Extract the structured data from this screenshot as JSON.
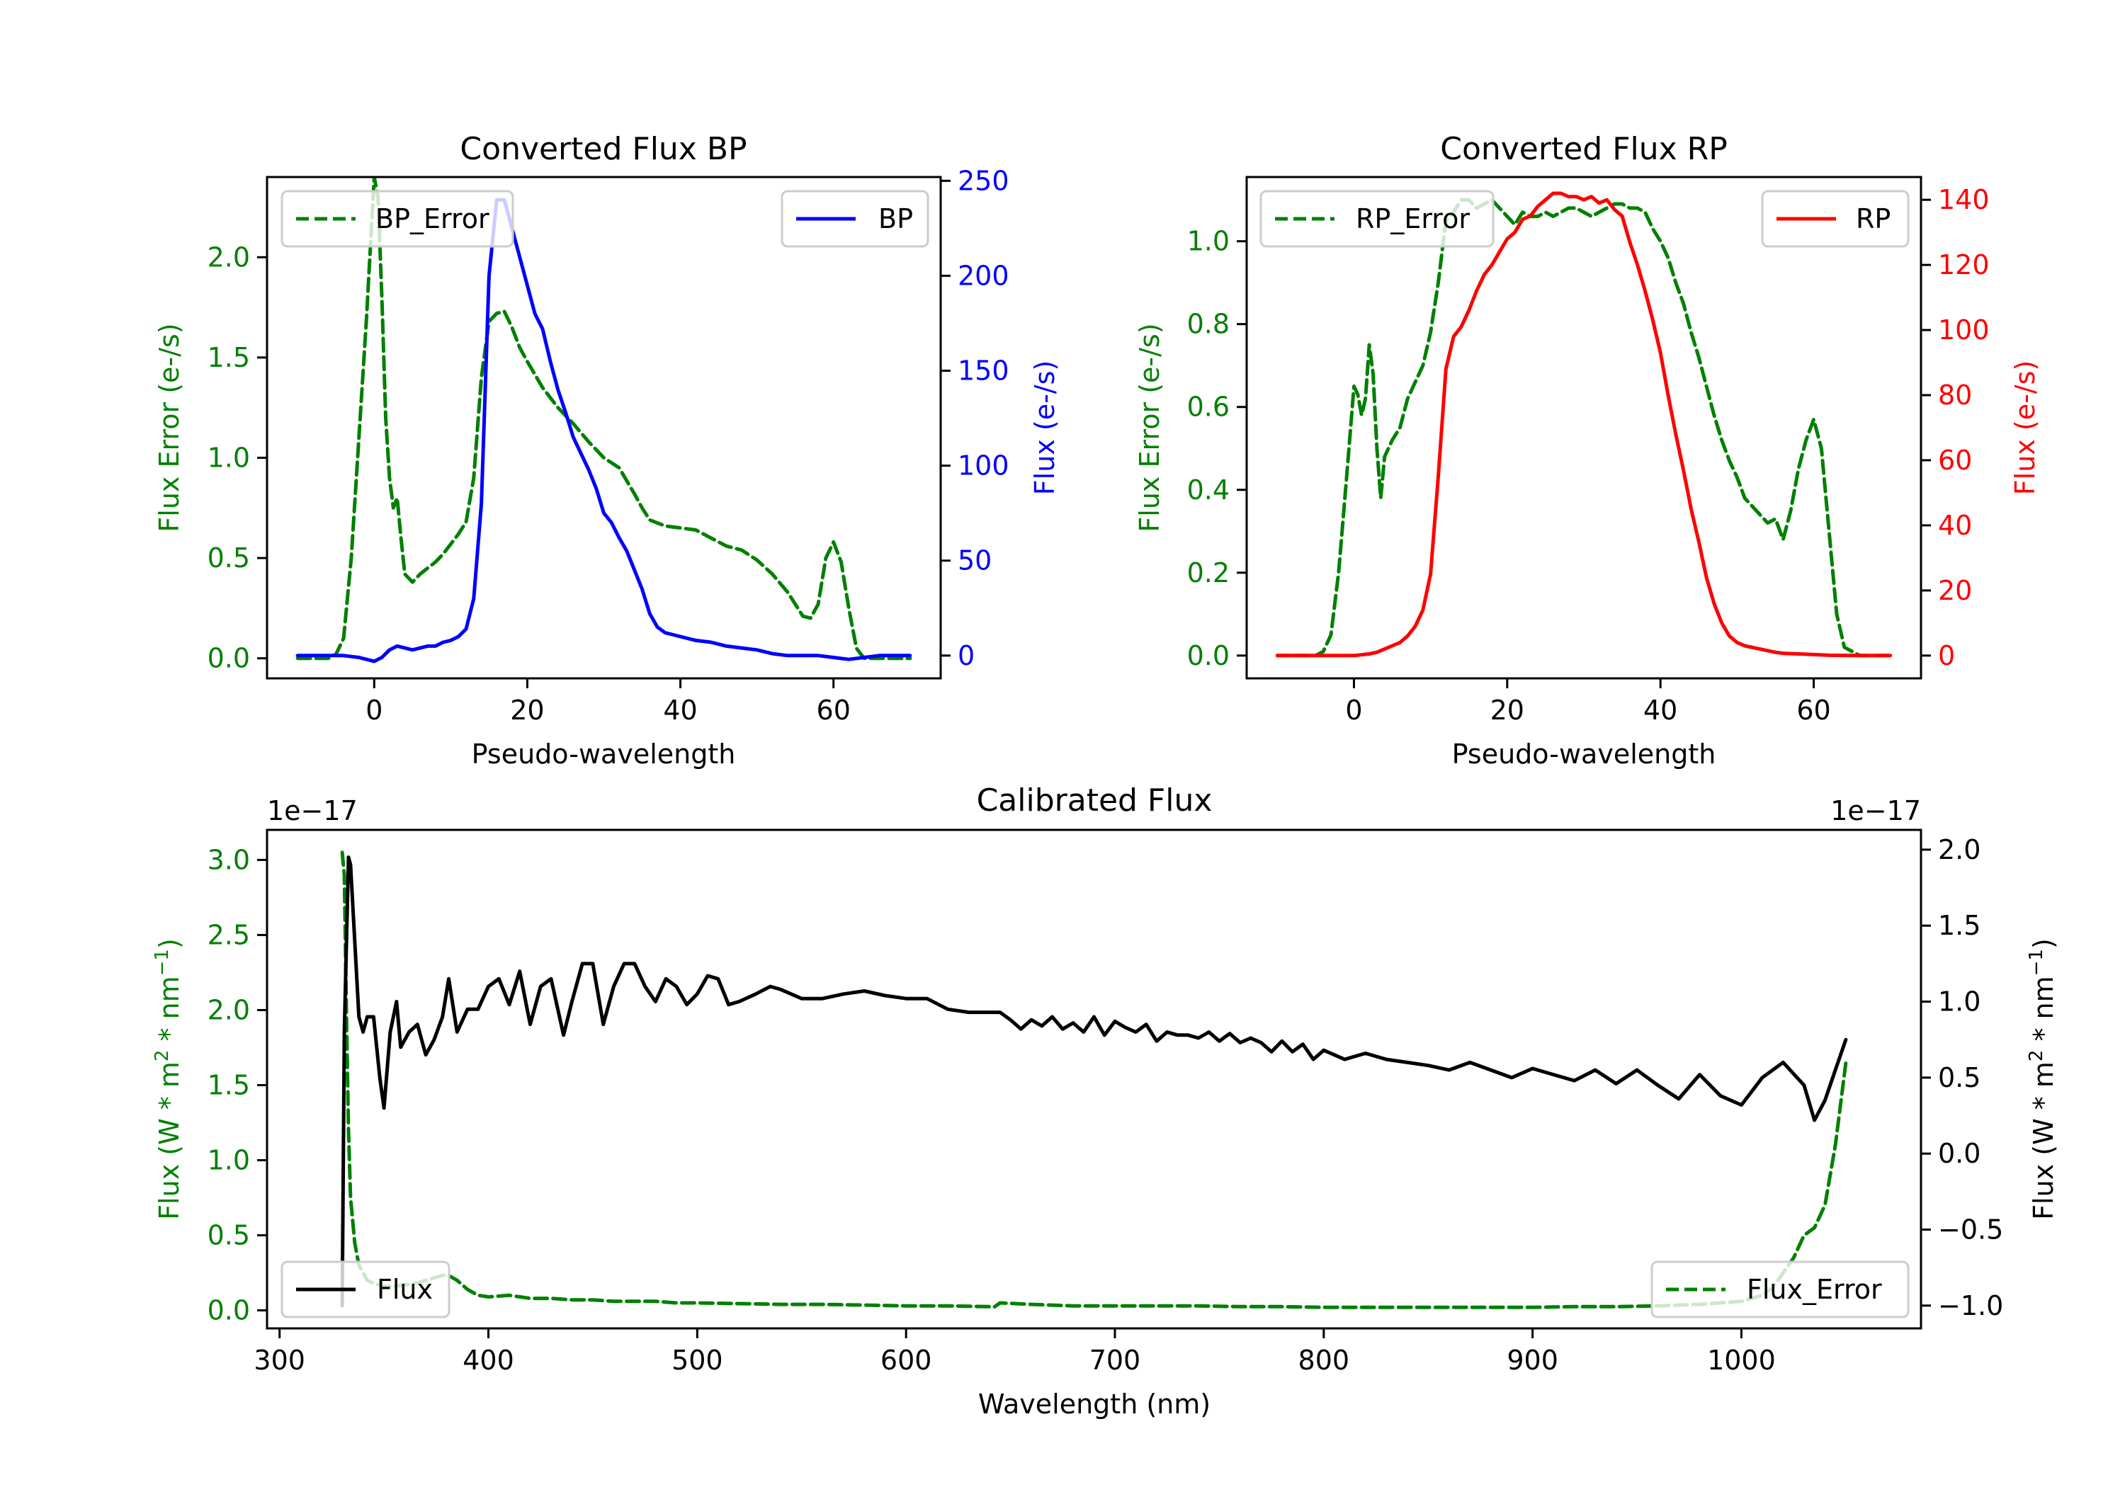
{
  "colors": {
    "error": "#008000",
    "bp": "#0000ff",
    "rp": "#ff0000",
    "flux": "#000000",
    "text": "#000000"
  },
  "chart_data": [
    {
      "id": "bp",
      "type": "line",
      "title": "Converted Flux BP",
      "xlabel": "Pseudo-wavelength",
      "ylabel_left": "Flux Error (e-/s)",
      "ylabel_right": "Flux (e-/s)",
      "xlim": [
        -14,
        74
      ],
      "xticks": [
        0,
        20,
        40,
        60
      ],
      "ylim_left": [
        -0.1,
        2.4
      ],
      "yticks_left": [
        0.0,
        0.5,
        1.0,
        1.5,
        2.0
      ],
      "ytick_labels_left": [
        "0.0",
        "0.5",
        "1.0",
        "1.5",
        "2.0"
      ],
      "ylim_right": [
        -12,
        252
      ],
      "yticks_right": [
        0,
        50,
        100,
        150,
        200,
        250
      ],
      "grid": false,
      "legend_left": {
        "placement": "upper-left",
        "label": "BP_Error"
      },
      "legend_right": {
        "placement": "upper-right",
        "label": "BP"
      },
      "series": [
        {
          "name": "BP_Error",
          "axis": "left",
          "style": "dashed",
          "color": "#008000",
          "x": [
            -10,
            -6,
            -5,
            -4,
            -3,
            -2,
            -1,
            0,
            0.5,
            1,
            1.5,
            2,
            2.5,
            3,
            3.5,
            4,
            5,
            6,
            7,
            8,
            9,
            10,
            11,
            12,
            13,
            14,
            15,
            16,
            17,
            18,
            19,
            20,
            22,
            24,
            26,
            28,
            30,
            32,
            34,
            35,
            36,
            38,
            40,
            42,
            44,
            46,
            48,
            50,
            52,
            54,
            56,
            57,
            58,
            59,
            60,
            61,
            62,
            63,
            64,
            66,
            70
          ],
          "y": [
            0.0,
            0.0,
            0.02,
            0.1,
            0.5,
            1.1,
            1.7,
            2.4,
            2.3,
            1.8,
            1.2,
            0.9,
            0.75,
            0.8,
            0.6,
            0.42,
            0.38,
            0.42,
            0.45,
            0.48,
            0.52,
            0.57,
            0.62,
            0.68,
            0.9,
            1.4,
            1.68,
            1.72,
            1.73,
            1.65,
            1.55,
            1.48,
            1.35,
            1.25,
            1.17,
            1.08,
            1.0,
            0.95,
            0.82,
            0.75,
            0.69,
            0.66,
            0.65,
            0.64,
            0.6,
            0.56,
            0.54,
            0.49,
            0.42,
            0.33,
            0.21,
            0.2,
            0.27,
            0.5,
            0.58,
            0.48,
            0.25,
            0.05,
            0.0,
            0.0,
            0.0
          ]
        },
        {
          "name": "BP",
          "axis": "right",
          "style": "solid",
          "color": "#0000ff",
          "x": [
            -10,
            -6,
            -4,
            -2,
            0,
            1,
            2,
            3,
            4,
            5,
            6,
            7,
            8,
            9,
            10,
            11,
            12,
            13,
            14,
            15,
            16,
            17,
            18,
            19,
            20,
            21,
            22,
            23,
            24,
            25,
            26,
            28,
            29,
            30,
            31,
            32,
            33,
            34,
            35,
            36,
            37,
            38,
            40,
            42,
            44,
            46,
            48,
            50,
            52,
            54,
            56,
            58,
            60,
            62,
            64,
            66,
            70
          ],
          "y": [
            0,
            0,
            0,
            -1,
            -3,
            -1,
            3,
            5,
            4,
            3,
            4,
            5,
            5,
            7,
            8,
            10,
            14,
            30,
            80,
            200,
            240,
            240,
            225,
            210,
            195,
            180,
            172,
            155,
            140,
            128,
            115,
            98,
            88,
            75,
            70,
            62,
            55,
            45,
            35,
            22,
            15,
            12,
            10,
            8,
            7,
            5,
            4,
            3,
            1,
            0,
            0,
            0,
            -1,
            -2,
            -1,
            0,
            0
          ]
        }
      ]
    },
    {
      "id": "rp",
      "type": "line",
      "title": "Converted Flux RP",
      "xlabel": "Pseudo-wavelength",
      "ylabel_left": "Flux Error (e-/s)",
      "ylabel_right": "Flux (e-/s)",
      "xlim": [
        -14,
        74
      ],
      "xticks": [
        0,
        20,
        40,
        60
      ],
      "ylim_left": [
        -0.055,
        1.155
      ],
      "yticks_left": [
        0.0,
        0.2,
        0.4,
        0.6,
        0.8,
        1.0
      ],
      "ytick_labels_left": [
        "0.0",
        "0.2",
        "0.4",
        "0.6",
        "0.8",
        "1.0"
      ],
      "ylim_right": [
        -7,
        147
      ],
      "yticks_right": [
        0,
        20,
        40,
        60,
        80,
        100,
        120,
        140
      ],
      "grid": false,
      "legend_left": {
        "placement": "upper-left",
        "label": "RP_Error"
      },
      "legend_right": {
        "placement": "upper-right",
        "label": "RP"
      },
      "series": [
        {
          "name": "RP_Error",
          "axis": "left",
          "style": "dashed",
          "color": "#008000",
          "x": [
            -10,
            -5,
            -4,
            -3,
            -2,
            -1,
            0,
            0.5,
            1,
            1.5,
            2,
            2.5,
            3,
            3.5,
            4,
            5,
            6,
            7,
            8,
            9,
            10,
            11,
            12,
            13,
            14,
            15,
            16,
            17,
            18,
            19,
            20,
            21,
            22,
            23,
            24,
            25,
            26,
            27,
            28,
            29,
            30,
            31,
            32,
            33,
            34,
            35,
            36,
            37,
            38,
            39,
            40,
            41,
            42,
            43,
            44,
            45,
            46,
            47,
            48,
            49,
            50,
            51,
            52,
            53,
            54,
            55,
            56,
            57,
            58,
            59,
            60,
            61,
            62,
            63,
            64,
            66,
            70
          ],
          "y": [
            0.0,
            0.0,
            0.01,
            0.05,
            0.2,
            0.42,
            0.65,
            0.63,
            0.58,
            0.62,
            0.75,
            0.68,
            0.5,
            0.38,
            0.48,
            0.52,
            0.55,
            0.62,
            0.66,
            0.7,
            0.78,
            0.9,
            1.05,
            1.07,
            1.1,
            1.1,
            1.08,
            1.09,
            1.1,
            1.08,
            1.06,
            1.04,
            1.07,
            1.06,
            1.06,
            1.07,
            1.06,
            1.07,
            1.08,
            1.08,
            1.07,
            1.06,
            1.07,
            1.08,
            1.09,
            1.09,
            1.08,
            1.08,
            1.07,
            1.03,
            1.0,
            0.96,
            0.9,
            0.85,
            0.78,
            0.72,
            0.65,
            0.58,
            0.52,
            0.47,
            0.43,
            0.38,
            0.36,
            0.34,
            0.32,
            0.33,
            0.28,
            0.35,
            0.45,
            0.52,
            0.57,
            0.5,
            0.3,
            0.1,
            0.02,
            0.0,
            0.0
          ]
        },
        {
          "name": "RP",
          "axis": "right",
          "style": "solid",
          "color": "#ff0000",
          "x": [
            -10,
            -5,
            0,
            2,
            3,
            4,
            5,
            6,
            7,
            8,
            9,
            10,
            11,
            12,
            13,
            14,
            15,
            16,
            17,
            18,
            19,
            20,
            21,
            22,
            23,
            24,
            25,
            26,
            27,
            28,
            29,
            30,
            31,
            32,
            33,
            34,
            35,
            36,
            37,
            38,
            39,
            40,
            41,
            42,
            43,
            44,
            45,
            46,
            47,
            48,
            49,
            50,
            51,
            52,
            53,
            54,
            55,
            56,
            58,
            60,
            62,
            66,
            70
          ],
          "y": [
            0,
            0,
            0,
            0.5,
            1,
            2,
            3,
            4,
            6,
            9,
            14,
            25,
            55,
            88,
            98,
            101,
            106,
            112,
            117,
            120,
            124,
            128,
            130,
            134,
            135,
            138,
            140,
            142,
            142,
            141,
            141,
            140,
            141,
            139,
            140,
            137,
            135,
            127,
            120,
            112,
            103,
            93,
            80,
            68,
            57,
            45,
            35,
            24,
            16,
            10,
            6,
            4,
            3,
            2.5,
            2,
            1.5,
            1,
            0.7,
            0.5,
            0.3,
            0.1,
            0,
            0
          ]
        }
      ]
    },
    {
      "id": "calibrated",
      "type": "line",
      "title": "Calibrated Flux",
      "xlabel": "Wavelength (nm)",
      "ylabel_left": "Flux (W * m^2 * nm^-1)",
      "ylabel_right": "Flux (W * m^2 * nm^-1)",
      "offset_left": "1e−17",
      "offset_right": "1e−17",
      "xlim": [
        294,
        1086
      ],
      "xticks": [
        300,
        400,
        500,
        600,
        700,
        800,
        900,
        1000
      ],
      "ylim_left": [
        -0.12,
        3.2
      ],
      "yticks_left": [
        0.0,
        0.5,
        1.0,
        1.5,
        2.0,
        2.5,
        3.0
      ],
      "ytick_labels_left": [
        "0.0",
        "0.5",
        "1.0",
        "1.5",
        "2.0",
        "2.5",
        "3.0"
      ],
      "ylim_right": [
        -1.15,
        2.13
      ],
      "yticks_right": [
        -1.0,
        -0.5,
        0.0,
        0.5,
        1.0,
        1.5,
        2.0
      ],
      "ytick_labels_right": [
        "−1.0",
        "−0.5",
        "0.0",
        "0.5",
        "1.0",
        "1.5",
        "2.0"
      ],
      "grid": false,
      "legend_left": {
        "placement": "lower-left",
        "label": "Flux"
      },
      "legend_right": {
        "placement": "lower-right",
        "label": "Flux_Error"
      },
      "series": [
        {
          "name": "Flux",
          "axis": "right",
          "style": "solid",
          "color": "#000000",
          "scale": "1e-17",
          "x": [
            330,
            331,
            333,
            334,
            336,
            338,
            340,
            342,
            345,
            348,
            350,
            353,
            356,
            358,
            362,
            366,
            370,
            374,
            378,
            381,
            385,
            390,
            395,
            400,
            405,
            410,
            415,
            420,
            425,
            430,
            436,
            440,
            445,
            450,
            455,
            460,
            465,
            470,
            475,
            480,
            485,
            490,
            495,
            500,
            505,
            510,
            515,
            520,
            528,
            535,
            540,
            550,
            560,
            570,
            580,
            590,
            600,
            610,
            620,
            630,
            640,
            645,
            650,
            655,
            660,
            665,
            670,
            675,
            680,
            685,
            690,
            695,
            700,
            705,
            710,
            715,
            720,
            725,
            730,
            735,
            740,
            745,
            750,
            755,
            760,
            765,
            770,
            775,
            780,
            785,
            790,
            795,
            800,
            810,
            820,
            830,
            840,
            850,
            860,
            870,
            880,
            890,
            900,
            910,
            920,
            930,
            940,
            950,
            960,
            970,
            980,
            990,
            1000,
            1010,
            1020,
            1030,
            1035,
            1040,
            1045,
            1050
          ],
          "y": [
            -1.0,
            0.8,
            1.95,
            1.9,
            1.4,
            0.9,
            0.8,
            0.9,
            0.9,
            0.5,
            0.3,
            0.8,
            1.0,
            0.7,
            0.8,
            0.85,
            0.65,
            0.75,
            0.9,
            1.15,
            0.8,
            0.95,
            0.95,
            1.1,
            1.15,
            0.98,
            1.2,
            0.85,
            1.1,
            1.15,
            0.78,
            1.0,
            1.25,
            1.25,
            0.85,
            1.1,
            1.25,
            1.25,
            1.1,
            1.0,
            1.15,
            1.1,
            0.98,
            1.05,
            1.17,
            1.15,
            0.98,
            1.0,
            1.05,
            1.1,
            1.08,
            1.02,
            1.02,
            1.05,
            1.07,
            1.04,
            1.02,
            1.02,
            0.95,
            0.93,
            0.93,
            0.93,
            0.88,
            0.82,
            0.88,
            0.84,
            0.9,
            0.82,
            0.86,
            0.8,
            0.9,
            0.78,
            0.87,
            0.83,
            0.8,
            0.85,
            0.74,
            0.8,
            0.78,
            0.78,
            0.76,
            0.8,
            0.74,
            0.79,
            0.73,
            0.76,
            0.73,
            0.67,
            0.74,
            0.67,
            0.72,
            0.62,
            0.68,
            0.62,
            0.66,
            0.62,
            0.6,
            0.58,
            0.55,
            0.6,
            0.55,
            0.5,
            0.56,
            0.52,
            0.48,
            0.55,
            0.46,
            0.55,
            0.45,
            0.36,
            0.52,
            0.38,
            0.32,
            0.5,
            0.6,
            0.45,
            0.22,
            0.35,
            0.55,
            0.75
          ],
          "note": "plotted on right axis (×1e-17)"
        },
        {
          "name": "Flux_Error",
          "axis": "left",
          "style": "dashed",
          "color": "#008000",
          "scale": "1e-17",
          "x": [
            330,
            331,
            332,
            333,
            334,
            336,
            338,
            340,
            342,
            345,
            350,
            355,
            360,
            365,
            370,
            375,
            380,
            385,
            390,
            395,
            400,
            410,
            420,
            430,
            440,
            450,
            460,
            470,
            480,
            490,
            500,
            520,
            540,
            560,
            580,
            600,
            620,
            640,
            642,
            645,
            660,
            680,
            700,
            720,
            740,
            760,
            780,
            800,
            820,
            840,
            860,
            880,
            900,
            920,
            940,
            960,
            980,
            990,
            1000,
            1005,
            1010,
            1015,
            1020,
            1025,
            1030,
            1035,
            1040,
            1045,
            1050
          ],
          "y": [
            3.05,
            2.9,
            2.0,
            1.2,
            0.75,
            0.45,
            0.3,
            0.25,
            0.2,
            0.18,
            0.16,
            0.16,
            0.17,
            0.18,
            0.2,
            0.22,
            0.24,
            0.2,
            0.14,
            0.1,
            0.09,
            0.1,
            0.08,
            0.08,
            0.07,
            0.07,
            0.06,
            0.06,
            0.06,
            0.05,
            0.05,
            0.045,
            0.04,
            0.04,
            0.035,
            0.03,
            0.03,
            0.025,
            0.02,
            0.05,
            0.04,
            0.03,
            0.03,
            0.03,
            0.03,
            0.025,
            0.025,
            0.02,
            0.02,
            0.02,
            0.02,
            0.02,
            0.02,
            0.025,
            0.025,
            0.03,
            0.04,
            0.05,
            0.06,
            0.08,
            0.1,
            0.15,
            0.25,
            0.35,
            0.5,
            0.55,
            0.7,
            1.1,
            1.65
          ]
        }
      ]
    }
  ]
}
